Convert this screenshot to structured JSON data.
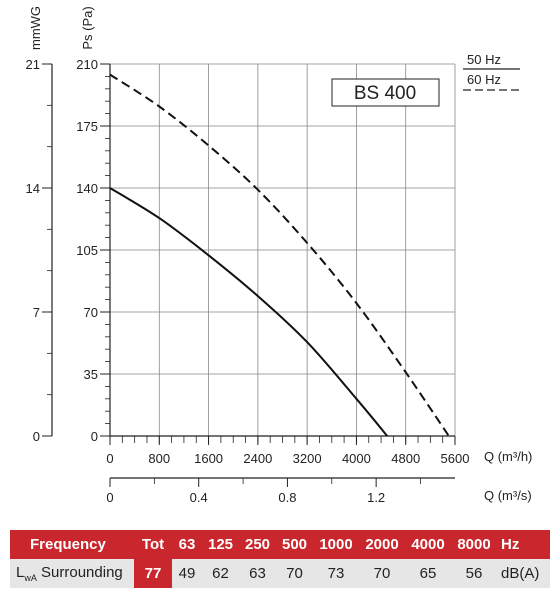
{
  "chart_data": {
    "type": "line",
    "model_label": "BS 400",
    "y_left_title": "mmWG",
    "y_title": "Ps (Pa)",
    "x_title": "Q (m³/h)",
    "x2_title": "Q (m³/s)",
    "xlim": [
      0,
      5600
    ],
    "ylim": [
      0,
      210
    ],
    "x_ticks": [
      "0",
      "800",
      "1600",
      "2400",
      "3200",
      "4000",
      "4800",
      "5600"
    ],
    "y_ticks": [
      "0",
      "35",
      "70",
      "105",
      "140",
      "175",
      "210"
    ],
    "mmwg_ticks": [
      {
        "label": "0",
        "pa": 0
      },
      {
        "label": "7",
        "pa": 70
      },
      {
        "label": "14",
        "pa": 140
      },
      {
        "label": "21",
        "pa": 210
      }
    ],
    "x2_ticks": [
      {
        "label": "0",
        "m3s": 0
      },
      {
        "label": "0.4",
        "m3s": 0.4
      },
      {
        "label": "0.8",
        "m3s": 0.8
      },
      {
        "label": "1.2",
        "m3s": 1.2
      }
    ],
    "grid": true,
    "series": [
      {
        "name": "50 Hz",
        "style": "solid",
        "x": [
          0,
          800,
          1600,
          2400,
          3200,
          4000,
          4500
        ],
        "y": [
          140,
          123,
          102,
          79,
          53,
          21,
          0
        ]
      },
      {
        "name": "60 Hz",
        "style": "dashed",
        "x": [
          0,
          800,
          1600,
          2400,
          3200,
          4000,
          4800,
          5500
        ],
        "y": [
          204,
          186,
          164,
          139,
          109,
          75,
          36,
          0
        ]
      }
    ]
  },
  "table": {
    "header": [
      "Frequency",
      "Tot",
      "63",
      "125",
      "250",
      "500",
      "1000",
      "2000",
      "4000",
      "8000",
      "Hz"
    ],
    "row_label_main": "L",
    "row_label_sub": "wA",
    "row_label_rest": " Surrounding",
    "values": [
      "77",
      "49",
      "62",
      "63",
      "70",
      "73",
      "70",
      "65",
      "56",
      "dB(A)"
    ]
  }
}
